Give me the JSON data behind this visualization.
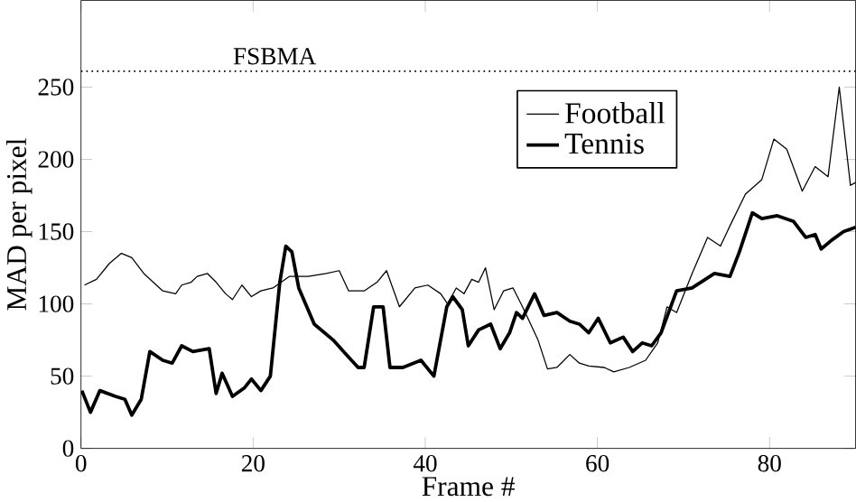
{
  "chart_data": {
    "type": "line",
    "xlabel": "Frame #",
    "ylabel": "MAD per pixel",
    "xlim": [
      0,
      90
    ],
    "ylim": [
      0,
      310
    ],
    "xticks": [
      0,
      20,
      40,
      60,
      80
    ],
    "yticks": [
      0,
      50,
      100,
      150,
      200,
      250
    ],
    "legend": "top right",
    "grid": false,
    "ref_lines": [
      {
        "axis": "y",
        "value": 261,
        "label": "FSBMA",
        "line_style": "dotted"
      }
    ],
    "series": [
      {
        "name": "Football",
        "color": "#000000",
        "x": [
          0.4,
          1.8,
          3.3,
          4.7,
          5.9,
          7.3,
          9.5,
          11,
          11.7,
          12.8,
          13.5,
          14.7,
          15.7,
          16.8,
          17.6,
          18.7,
          19.8,
          20.9,
          22.3,
          24.2,
          26.4,
          28.5,
          30,
          31.1,
          32.9,
          34.4,
          35.5,
          37,
          38.8,
          40.3,
          41.8,
          42.6,
          43.6,
          44.5,
          45.4,
          46.2,
          47,
          48,
          49.1,
          50.2,
          51.3,
          53.1,
          54.2,
          55.3,
          56.8,
          57.9,
          59,
          60.8,
          61.9,
          63.7,
          65.6,
          67,
          68.1,
          69.2,
          71,
          72.8,
          74.3,
          75.4,
          77.2,
          79.1,
          80.5,
          82,
          83.8,
          85.3,
          86.8,
          88.1,
          89.4,
          90
        ],
        "values": [
          113,
          117,
          128,
          135,
          132,
          121,
          109,
          107,
          113,
          115,
          119,
          121,
          115,
          107,
          103,
          113,
          105,
          109,
          111,
          119,
          119,
          121,
          123,
          109,
          109,
          115,
          123,
          98,
          111,
          113,
          107,
          100,
          111,
          107,
          117,
          115,
          125,
          96,
          109,
          111,
          98,
          75,
          55,
          56,
          65,
          59,
          57,
          56,
          53,
          56,
          61,
          73,
          98,
          94,
          121,
          146,
          140,
          154,
          176,
          186,
          214,
          207,
          178,
          195,
          188,
          250,
          182,
          184
        ]
      },
      {
        "name": "Tennis",
        "color": "#000000",
        "x": [
          0.1,
          1.1,
          2.2,
          4,
          5.1,
          5.9,
          7,
          8,
          9.5,
          10.6,
          11.7,
          13,
          14.9,
          15.7,
          16.4,
          17.6,
          19,
          19.8,
          20.9,
          22,
          23.1,
          23.8,
          24.5,
          25.3,
          27.1,
          29.3,
          30.8,
          32.2,
          32.9,
          34,
          35.1,
          35.9,
          37.4,
          39.5,
          41,
          42.5,
          43.2,
          44.3,
          45,
          46.2,
          47.6,
          48.7,
          49.8,
          50.6,
          51.3,
          52.7,
          53.8,
          55.3,
          56.8,
          57.9,
          59,
          60.1,
          61.5,
          63,
          64.1,
          65.2,
          66.3,
          67.4,
          69.2,
          71,
          73.6,
          75.4,
          76.5,
          78,
          79.1,
          80.9,
          82.8,
          84.2,
          85.3,
          86,
          87.2,
          88.6,
          90
        ],
        "values": [
          40,
          25,
          40,
          36,
          34,
          23,
          34,
          67,
          61,
          59,
          71,
          67,
          69,
          38,
          52,
          36,
          42,
          48,
          40,
          50,
          115,
          140,
          136,
          111,
          86,
          75,
          65,
          56,
          56,
          98,
          98,
          56,
          56,
          61,
          50,
          98,
          105,
          96,
          71,
          82,
          86,
          69,
          80,
          94,
          90,
          107,
          92,
          94,
          88,
          86,
          80,
          90,
          73,
          77,
          67,
          73,
          71,
          80,
          109,
          111,
          121,
          119,
          136,
          163,
          159,
          161,
          157,
          146,
          148,
          138,
          144,
          150,
          153
        ]
      }
    ]
  }
}
